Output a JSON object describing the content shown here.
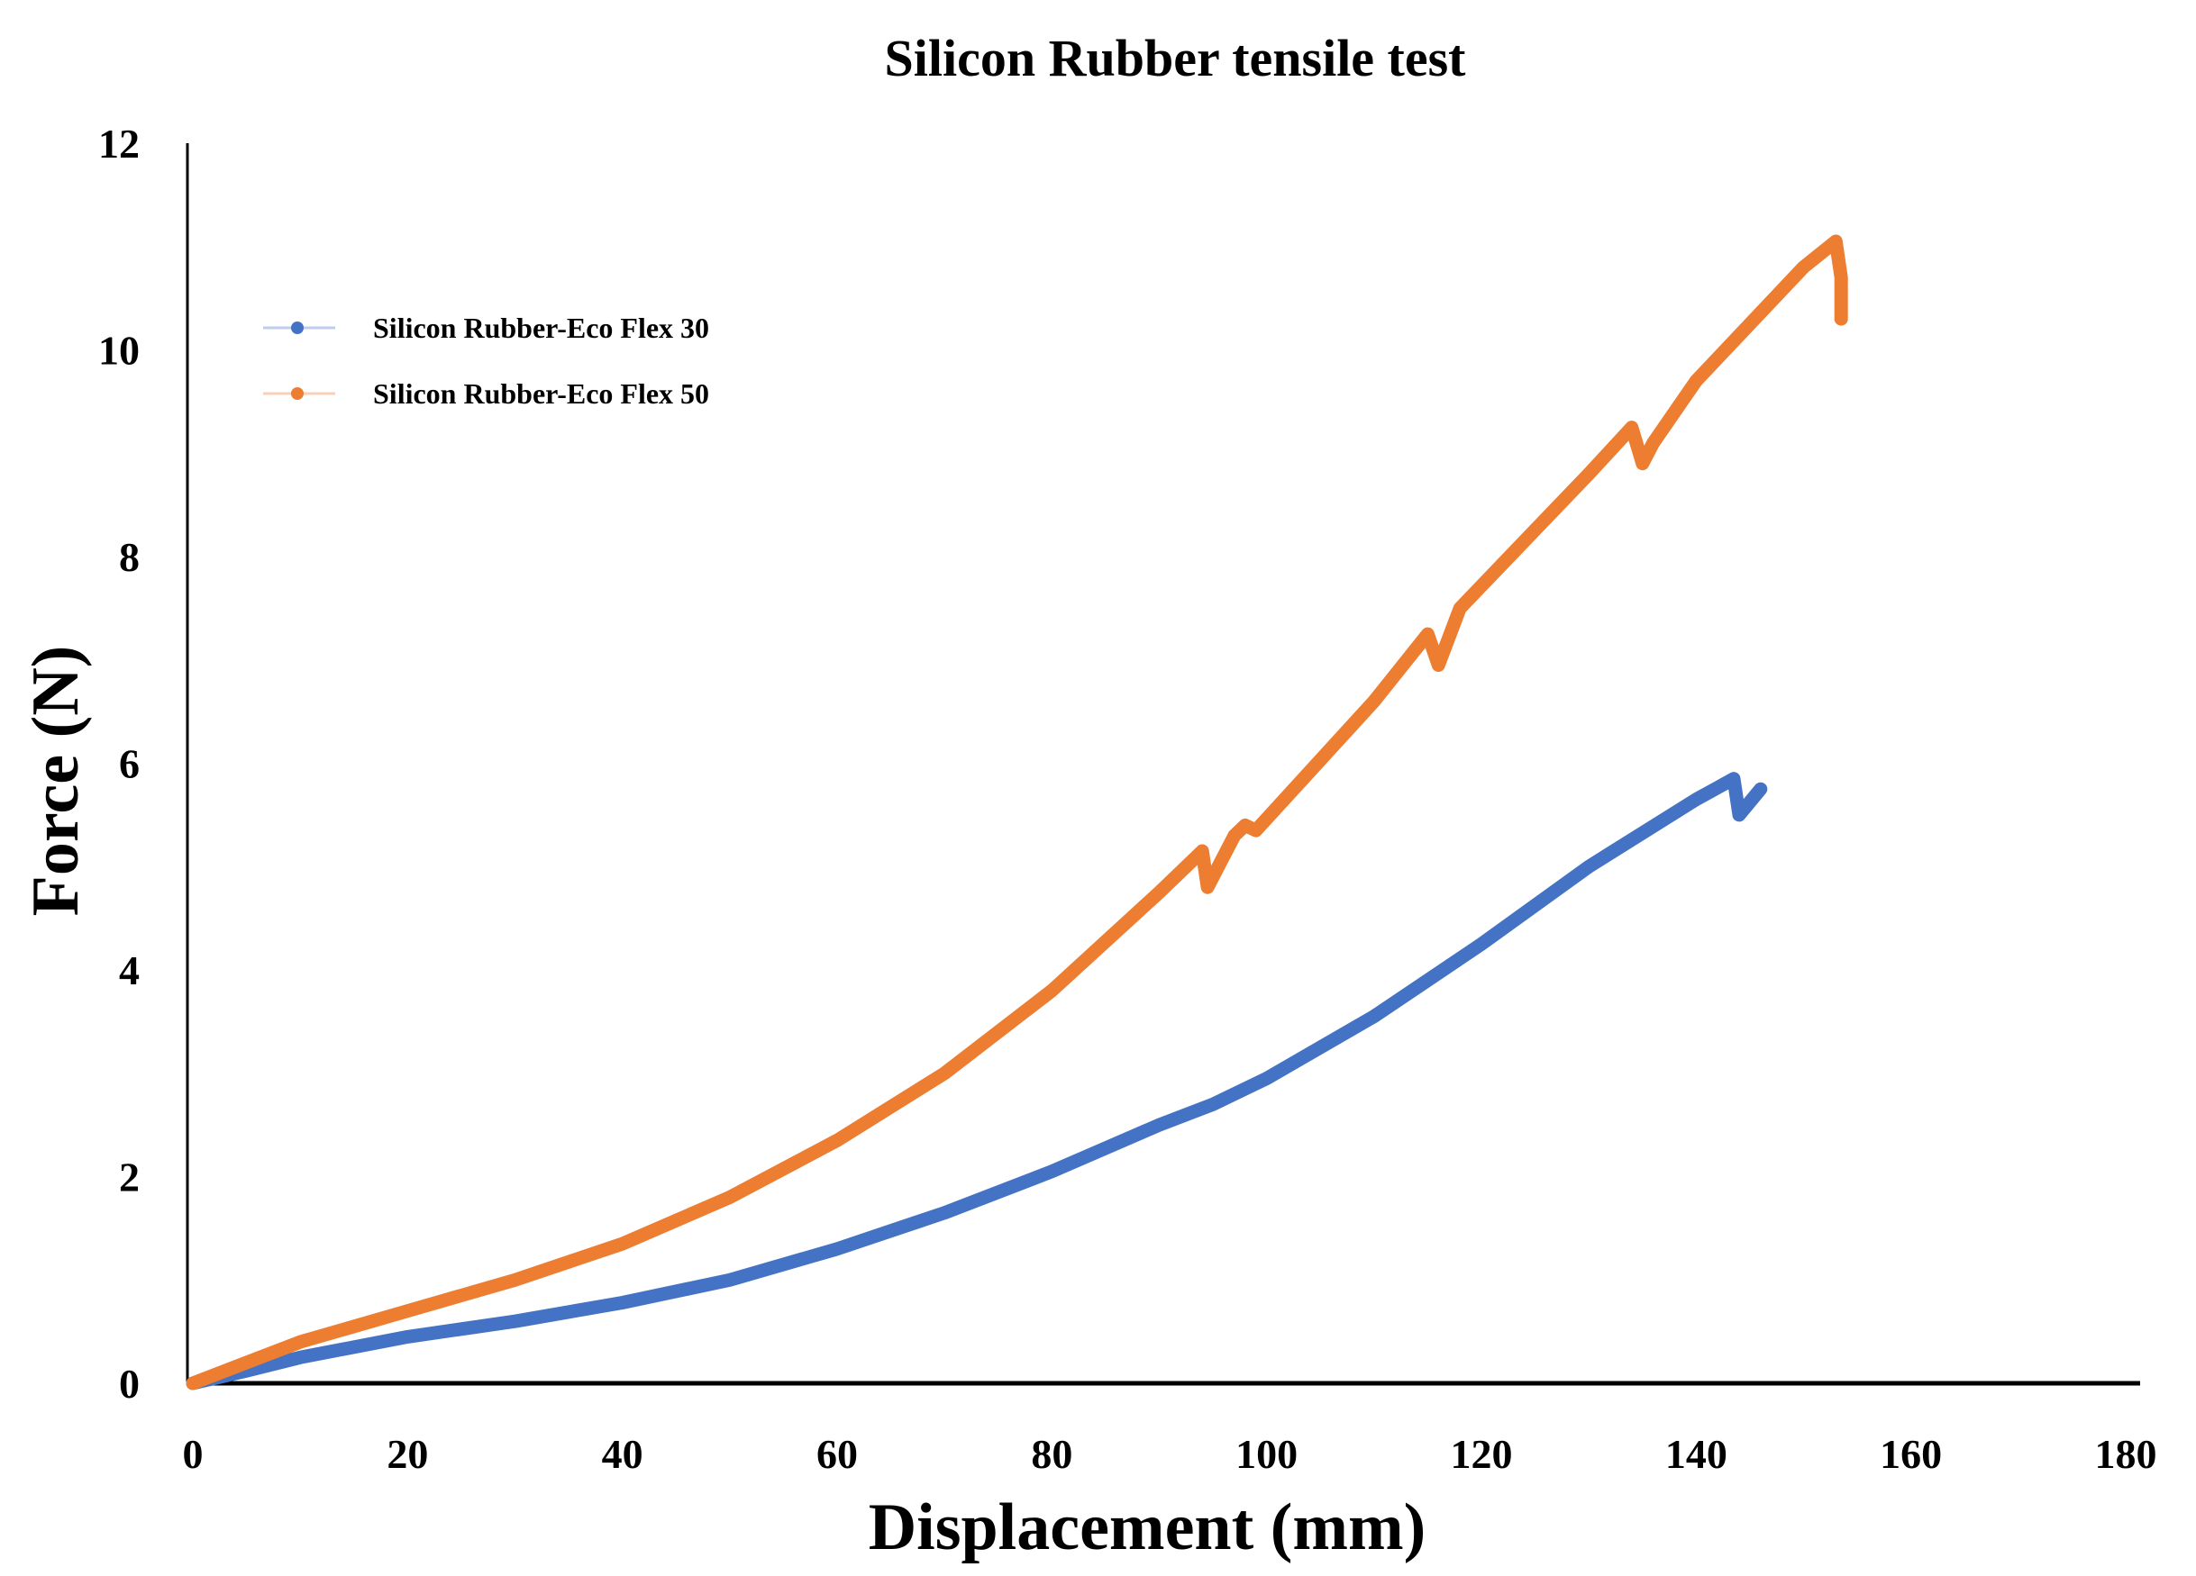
{
  "chart_data": {
    "type": "line",
    "title": "Silicon Rubber tensile test",
    "xlabel": "Displacement (mm)",
    "ylabel": "Force (N)",
    "xlim": [
      0,
      180
    ],
    "ylim": [
      0,
      12
    ],
    "xticks": [
      "0",
      "20",
      "40",
      "60",
      "80",
      "100",
      "120",
      "140",
      "160",
      "180"
    ],
    "yticks": [
      "0",
      "2",
      "4",
      "6",
      "8",
      "10",
      "12"
    ],
    "grid": false,
    "legend_position": "top-left",
    "series": [
      {
        "name": "Silicon Rubber-Eco Flex 30",
        "color": "#4472C4",
        "x": [
          0,
          5,
          10,
          20,
          30,
          40,
          50,
          60,
          70,
          80,
          90,
          95,
          100,
          110,
          115,
          120,
          130,
          140,
          143.5,
          144,
          146
        ],
        "y": [
          0,
          0.12,
          0.25,
          0.45,
          0.6,
          0.78,
          1.0,
          1.3,
          1.65,
          2.05,
          2.5,
          2.7,
          2.95,
          3.55,
          3.9,
          4.25,
          5.0,
          5.65,
          5.85,
          5.5,
          5.75
        ]
      },
      {
        "name": "Silicon Rubber-Eco Flex 50",
        "color": "#ED7D31",
        "x": [
          0,
          5,
          10,
          20,
          30,
          40,
          50,
          60,
          70,
          80,
          90,
          94,
          94.5,
          97,
          98,
          99,
          110,
          115,
          116,
          118,
          130,
          134,
          135,
          136,
          140,
          150,
          153,
          153.5,
          153.5
        ],
        "y": [
          0,
          0.2,
          0.4,
          0.7,
          1.0,
          1.35,
          1.8,
          2.35,
          3.0,
          3.8,
          4.75,
          5.15,
          4.8,
          5.3,
          5.4,
          5.35,
          6.6,
          7.25,
          6.95,
          7.5,
          8.8,
          9.25,
          8.9,
          9.1,
          9.7,
          10.8,
          11.05,
          10.7,
          10.3
        ]
      }
    ]
  }
}
